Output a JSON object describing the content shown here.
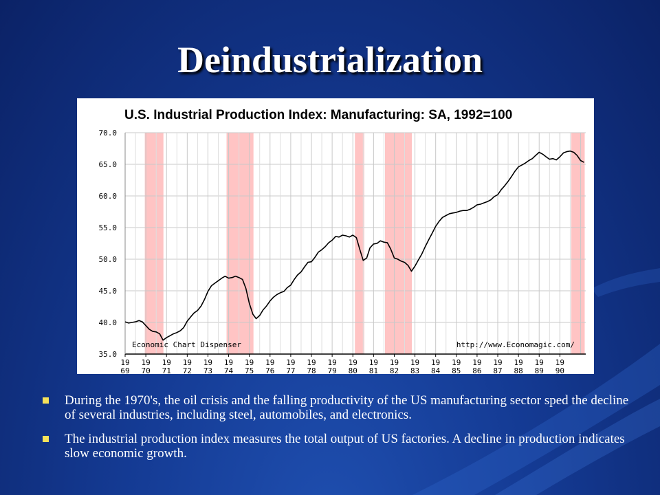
{
  "slide": {
    "title": "Deindustrialization",
    "accent_color": "#f6e25a",
    "background_color": "#143a93"
  },
  "bullets": [
    {
      "text": "During the 1970's, the oil crisis and the falling productivity of the US manufacturing sector sped the decline of several industries, including steel, automobiles, and electronics."
    },
    {
      "text": "The industrial production index measures the total output of US factories. A decline in production indicates slow economic growth."
    }
  ],
  "chart_data": {
    "type": "line",
    "title": "U.S. Industrial Production Index: Manufacturing: SA, 1992=100",
    "xlabel": "",
    "ylabel": "",
    "ylim": [
      35.0,
      70.0
    ],
    "xlim": [
      1969.0,
      1991.25
    ],
    "yticks": [
      "35.0",
      "40.0",
      "45.0",
      "50.0",
      "55.0",
      "60.0",
      "65.0",
      "70.0"
    ],
    "xticks": [
      {
        "top": "19",
        "bottom": "69",
        "year": 1969
      },
      {
        "top": "19",
        "bottom": "70",
        "year": 1970
      },
      {
        "top": "19",
        "bottom": "71",
        "year": 1971
      },
      {
        "top": "19",
        "bottom": "72",
        "year": 1972
      },
      {
        "top": "19",
        "bottom": "73",
        "year": 1973
      },
      {
        "top": "19",
        "bottom": "74",
        "year": 1974
      },
      {
        "top": "19",
        "bottom": "75",
        "year": 1975
      },
      {
        "top": "19",
        "bottom": "76",
        "year": 1976
      },
      {
        "top": "19",
        "bottom": "77",
        "year": 1977
      },
      {
        "top": "19",
        "bottom": "78",
        "year": 1978
      },
      {
        "top": "19",
        "bottom": "79",
        "year": 1979
      },
      {
        "top": "19",
        "bottom": "80",
        "year": 1980
      },
      {
        "top": "19",
        "bottom": "81",
        "year": 1981
      },
      {
        "top": "19",
        "bottom": "82",
        "year": 1982
      },
      {
        "top": "19",
        "bottom": "83",
        "year": 1983
      },
      {
        "top": "19",
        "bottom": "84",
        "year": 1984
      },
      {
        "top": "19",
        "bottom": "85",
        "year": 1985
      },
      {
        "top": "19",
        "bottom": "86",
        "year": 1986
      },
      {
        "top": "19",
        "bottom": "87",
        "year": 1987
      },
      {
        "top": "19",
        "bottom": "88",
        "year": 1988
      },
      {
        "top": "19",
        "bottom": "89",
        "year": 1989
      },
      {
        "top": "19",
        "bottom": "90",
        "year": 1990
      }
    ],
    "recessions": [
      [
        1969.95,
        1970.85
      ],
      [
        1973.9,
        1975.2
      ],
      [
        1980.1,
        1980.55
      ],
      [
        1981.55,
        1982.85
      ],
      [
        1990.55,
        1991.2
      ]
    ],
    "recession_color": "#ffc4c4",
    "line_color": "#000000",
    "grid": true,
    "annotations": {
      "left": "Economic Chart Dispenser",
      "right": "http://www.Economagic.com/"
    },
    "points": [
      [
        1969.0,
        40.1
      ],
      [
        1969.17,
        39.9
      ],
      [
        1969.33,
        40.0
      ],
      [
        1969.5,
        40.1
      ],
      [
        1969.67,
        40.3
      ],
      [
        1969.83,
        40.1
      ],
      [
        1970.0,
        39.5
      ],
      [
        1970.17,
        38.9
      ],
      [
        1970.33,
        38.6
      ],
      [
        1970.5,
        38.5
      ],
      [
        1970.67,
        38.2
      ],
      [
        1970.83,
        37.2
      ],
      [
        1971.0,
        37.6
      ],
      [
        1971.17,
        37.9
      ],
      [
        1971.33,
        38.2
      ],
      [
        1971.5,
        38.4
      ],
      [
        1971.67,
        38.7
      ],
      [
        1971.83,
        39.2
      ],
      [
        1972.0,
        40.2
      ],
      [
        1972.17,
        40.9
      ],
      [
        1972.33,
        41.5
      ],
      [
        1972.5,
        41.9
      ],
      [
        1972.67,
        42.6
      ],
      [
        1972.83,
        43.6
      ],
      [
        1973.0,
        44.9
      ],
      [
        1973.17,
        45.8
      ],
      [
        1973.33,
        46.2
      ],
      [
        1973.5,
        46.6
      ],
      [
        1973.67,
        47.0
      ],
      [
        1973.83,
        47.3
      ],
      [
        1974.0,
        47.0
      ],
      [
        1974.17,
        47.1
      ],
      [
        1974.33,
        47.3
      ],
      [
        1974.5,
        47.1
      ],
      [
        1974.67,
        46.8
      ],
      [
        1974.83,
        45.4
      ],
      [
        1975.0,
        43.0
      ],
      [
        1975.17,
        41.3
      ],
      [
        1975.33,
        40.6
      ],
      [
        1975.5,
        41.1
      ],
      [
        1975.67,
        42.0
      ],
      [
        1975.83,
        42.6
      ],
      [
        1976.0,
        43.4
      ],
      [
        1976.17,
        44.0
      ],
      [
        1976.33,
        44.4
      ],
      [
        1976.5,
        44.7
      ],
      [
        1976.67,
        44.9
      ],
      [
        1976.83,
        45.5
      ],
      [
        1977.0,
        45.9
      ],
      [
        1977.17,
        46.8
      ],
      [
        1977.33,
        47.5
      ],
      [
        1977.5,
        48.0
      ],
      [
        1977.67,
        48.8
      ],
      [
        1977.83,
        49.5
      ],
      [
        1978.0,
        49.6
      ],
      [
        1978.17,
        50.3
      ],
      [
        1978.33,
        51.1
      ],
      [
        1978.5,
        51.5
      ],
      [
        1978.67,
        52.0
      ],
      [
        1978.83,
        52.6
      ],
      [
        1979.0,
        53.0
      ],
      [
        1979.17,
        53.6
      ],
      [
        1979.33,
        53.5
      ],
      [
        1979.5,
        53.8
      ],
      [
        1979.67,
        53.7
      ],
      [
        1979.83,
        53.5
      ],
      [
        1980.0,
        53.8
      ],
      [
        1980.17,
        53.4
      ],
      [
        1980.33,
        51.6
      ],
      [
        1980.5,
        49.8
      ],
      [
        1980.67,
        50.2
      ],
      [
        1980.83,
        51.8
      ],
      [
        1981.0,
        52.4
      ],
      [
        1981.17,
        52.5
      ],
      [
        1981.33,
        52.9
      ],
      [
        1981.5,
        52.7
      ],
      [
        1981.67,
        52.6
      ],
      [
        1981.83,
        51.6
      ],
      [
        1982.0,
        50.2
      ],
      [
        1982.17,
        50.0
      ],
      [
        1982.33,
        49.7
      ],
      [
        1982.5,
        49.5
      ],
      [
        1982.67,
        49.0
      ],
      [
        1982.83,
        48.1
      ],
      [
        1983.0,
        48.9
      ],
      [
        1983.17,
        49.9
      ],
      [
        1983.33,
        50.8
      ],
      [
        1983.5,
        52.0
      ],
      [
        1983.67,
        53.1
      ],
      [
        1983.83,
        54.1
      ],
      [
        1984.0,
        55.2
      ],
      [
        1984.17,
        56.0
      ],
      [
        1984.33,
        56.6
      ],
      [
        1984.5,
        56.9
      ],
      [
        1984.67,
        57.2
      ],
      [
        1984.83,
        57.3
      ],
      [
        1985.0,
        57.4
      ],
      [
        1985.17,
        57.6
      ],
      [
        1985.33,
        57.7
      ],
      [
        1985.5,
        57.7
      ],
      [
        1985.67,
        57.9
      ],
      [
        1985.83,
        58.2
      ],
      [
        1986.0,
        58.6
      ],
      [
        1986.17,
        58.7
      ],
      [
        1986.33,
        58.9
      ],
      [
        1986.5,
        59.1
      ],
      [
        1986.67,
        59.4
      ],
      [
        1986.83,
        59.9
      ],
      [
        1987.0,
        60.2
      ],
      [
        1987.17,
        61.0
      ],
      [
        1987.33,
        61.6
      ],
      [
        1987.5,
        62.3
      ],
      [
        1987.67,
        63.1
      ],
      [
        1987.83,
        63.9
      ],
      [
        1988.0,
        64.6
      ],
      [
        1988.17,
        64.9
      ],
      [
        1988.33,
        65.2
      ],
      [
        1988.5,
        65.6
      ],
      [
        1988.67,
        65.9
      ],
      [
        1988.83,
        66.4
      ],
      [
        1989.0,
        66.9
      ],
      [
        1989.17,
        66.6
      ],
      [
        1989.33,
        66.2
      ],
      [
        1989.5,
        65.8
      ],
      [
        1989.67,
        65.9
      ],
      [
        1989.83,
        65.7
      ],
      [
        1990.0,
        66.2
      ],
      [
        1990.17,
        66.8
      ],
      [
        1990.33,
        67.0
      ],
      [
        1990.5,
        67.1
      ],
      [
        1990.67,
        66.9
      ],
      [
        1990.83,
        66.4
      ],
      [
        1991.0,
        65.6
      ],
      [
        1991.17,
        65.3
      ]
    ]
  }
}
